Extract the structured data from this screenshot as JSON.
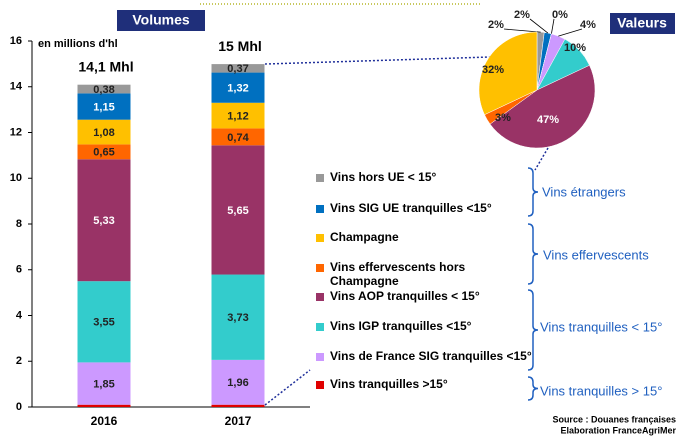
{
  "chart_data": [
    {
      "type": "stacked_bar",
      "title": "Volumes",
      "y_label": "en millions d'hl",
      "categories": [
        "2016",
        "2017"
      ],
      "totals": [
        "14,1 Mhl",
        "15 Mhl"
      ],
      "ylim": [
        0,
        16
      ],
      "yticks": [
        0,
        2,
        4,
        6,
        8,
        10,
        12,
        14,
        16
      ],
      "series": [
        {
          "name": "Vins tranquilles >15°",
          "color": "#e00000",
          "values": [
            0.1,
            0.1
          ],
          "value_labels": [
            null,
            null
          ]
        },
        {
          "name": "Vins de France SIG tranquilles <15°",
          "color": "#cc99ff",
          "values": [
            1.85,
            1.96
          ],
          "value_labels": [
            "1,85",
            "1,96"
          ]
        },
        {
          "name": "Vins IGP tranquilles <15°",
          "color": "#33cccc",
          "values": [
            3.55,
            3.73
          ],
          "value_labels": [
            "3,55",
            "3,73"
          ]
        },
        {
          "name": "Vins AOP tranquilles < 15°",
          "color": "#993366",
          "values": [
            5.33,
            5.65
          ],
          "value_labels": [
            "5,33",
            "5,65"
          ]
        },
        {
          "name": "Vins effervescents hors Champagne",
          "color": "#ff6600",
          "values": [
            0.65,
            0.74
          ],
          "value_labels": [
            "0,65",
            "0,74"
          ]
        },
        {
          "name": "Champagne",
          "color": "#ffc000",
          "values": [
            1.08,
            1.12
          ],
          "value_labels": [
            "1,08",
            "1,12"
          ]
        },
        {
          "name": "Vins SIG UE tranquilles <15°",
          "color": "#0070c0",
          "values": [
            1.15,
            1.32
          ],
          "value_labels": [
            "1,15",
            "1,32"
          ]
        },
        {
          "name": "Vins hors UE < 15°",
          "color": "#999999",
          "values": [
            0.38,
            0.37
          ],
          "value_labels": [
            "0,38",
            "0,37"
          ]
        }
      ],
      "legend_groups": [
        "Vins étrangers",
        "Vins effervescents",
        "Vins tranquilles < 15°",
        "Vins tranquilles > 15°"
      ]
    },
    {
      "type": "pie",
      "title": "Valeurs",
      "values": [
        2,
        2,
        0,
        4,
        10,
        47,
        3,
        32
      ],
      "value_labels": [
        "2%",
        "2%",
        "0%",
        "4%",
        "10%",
        "47%",
        "3%",
        "32%"
      ],
      "colors": [
        "#999999",
        "#0070c0",
        "#e00000",
        "#cc99ff",
        "#33cccc",
        "#993366",
        "#ff6600",
        "#ffc000"
      ]
    }
  ],
  "source": [
    "Source : Douanes françaises",
    "Elaboration FranceAgriMer"
  ]
}
